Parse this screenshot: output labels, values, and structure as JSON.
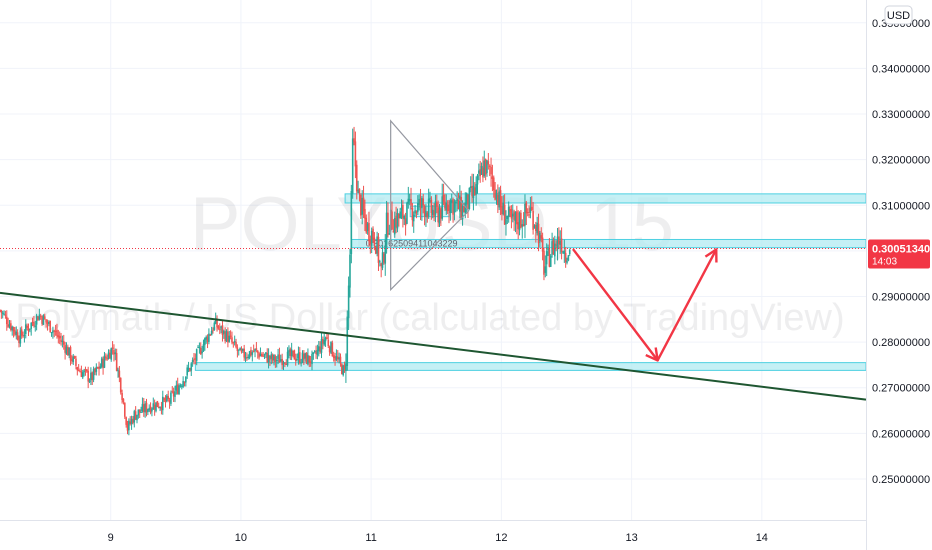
{
  "chart_data": {
    "type": "candlestick",
    "currency": "USD",
    "watermark": {
      "symbol_line": "POLYUSD, 15",
      "name_line": "Polymath / US Dollar (calculated by TradingView)"
    },
    "x_axis": {
      "labels": [
        "9",
        "10",
        "11",
        "12",
        "13",
        "14"
      ],
      "values": [
        9,
        10,
        11,
        12,
        13,
        14
      ],
      "range": [
        8.15,
        14.8
      ]
    },
    "y_axis": {
      "range": [
        0.241,
        0.355
      ],
      "tick_values": [
        0.25,
        0.26,
        0.27,
        0.28,
        0.29,
        0.3,
        0.31,
        0.32,
        0.33,
        0.34,
        0.35
      ],
      "tick_labels": [
        "0.25000000",
        "0.26000000",
        "0.27000000",
        "0.28000000",
        "0.29000000",
        "0.30000000",
        "0.31000000",
        "0.32000000",
        "0.33000000",
        "0.34000000",
        "0.35000000"
      ]
    },
    "last_price": {
      "value": 0.3005134,
      "label": "0.30051340",
      "countdown": "14:03",
      "color": "#f23645"
    },
    "price_path": [
      [
        8.15,
        0.287
      ],
      [
        8.3,
        0.281
      ],
      [
        8.45,
        0.286
      ],
      [
        8.55,
        0.283
      ],
      [
        8.65,
        0.279
      ],
      [
        8.75,
        0.274
      ],
      [
        8.85,
        0.272
      ],
      [
        8.95,
        0.276
      ],
      [
        9.02,
        0.279
      ],
      [
        9.08,
        0.27
      ],
      [
        9.13,
        0.261
      ],
      [
        9.18,
        0.264
      ],
      [
        9.3,
        0.266
      ],
      [
        9.45,
        0.267
      ],
      [
        9.6,
        0.274
      ],
      [
        9.7,
        0.279
      ],
      [
        9.8,
        0.284
      ],
      [
        9.9,
        0.281
      ],
      [
        10.0,
        0.277
      ],
      [
        10.1,
        0.278
      ],
      [
        10.25,
        0.276
      ],
      [
        10.4,
        0.277
      ],
      [
        10.55,
        0.276
      ],
      [
        10.65,
        0.281
      ],
      [
        10.72,
        0.277
      ],
      [
        10.8,
        0.273
      ],
      [
        10.84,
        0.301
      ],
      [
        10.86,
        0.325
      ],
      [
        10.9,
        0.312
      ],
      [
        10.97,
        0.305
      ],
      [
        11.03,
        0.303
      ],
      [
        11.08,
        0.295
      ],
      [
        11.12,
        0.306
      ],
      [
        11.2,
        0.307
      ],
      [
        11.3,
        0.309
      ],
      [
        11.4,
        0.31
      ],
      [
        11.5,
        0.308
      ],
      [
        11.6,
        0.311
      ],
      [
        11.7,
        0.309
      ],
      [
        11.8,
        0.313
      ],
      [
        11.87,
        0.319
      ],
      [
        11.93,
        0.316
      ],
      [
        12.0,
        0.309
      ],
      [
        12.08,
        0.306
      ],
      [
        12.15,
        0.307
      ],
      [
        12.22,
        0.309
      ],
      [
        12.28,
        0.305
      ],
      [
        12.33,
        0.296
      ],
      [
        12.38,
        0.3
      ],
      [
        12.45,
        0.303
      ],
      [
        12.5,
        0.299
      ],
      [
        12.53,
        0.3005134
      ]
    ],
    "colors": {
      "up": "#26a69a",
      "down": "#ef5350"
    }
  },
  "drawings": {
    "resistance_zone": {
      "y_top": 0.3125,
      "y_bottom": 0.3105,
      "x_start": 10.8,
      "x_end": 14.8,
      "color": "#b2ebf2"
    },
    "mid_zone": {
      "y_top": 0.3025,
      "y_bottom": 0.3007,
      "x_start": 10.85,
      "x_end": 14.8,
      "color": "#b2ebf2",
      "label": "0.30162509411043229"
    },
    "support_zone": {
      "y_top": 0.2755,
      "y_bottom": 0.2738,
      "x_start": 9.65,
      "x_end": 14.8,
      "color": "#b2ebf2"
    },
    "trendline": {
      "from": [
        8.15,
        0.2908
      ],
      "to": [
        14.8,
        0.2674
      ],
      "color": "#1e5631"
    },
    "triangle": {
      "points": [
        [
          11.15,
          0.3285
        ],
        [
          11.15,
          0.2915
        ],
        [
          11.75,
          0.3088
        ]
      ],
      "color": "#9598a1"
    },
    "small_box": {
      "x_start": 11.3,
      "x_end": 11.6,
      "y_top": 0.3098,
      "y_bottom": 0.3075,
      "color": "#b2ebf2"
    },
    "projection_arrows": {
      "points": [
        [
          12.55,
          0.3004
        ],
        [
          13.2,
          0.276
        ],
        [
          13.65,
          0.3003
        ]
      ],
      "color": "#f23645"
    }
  }
}
